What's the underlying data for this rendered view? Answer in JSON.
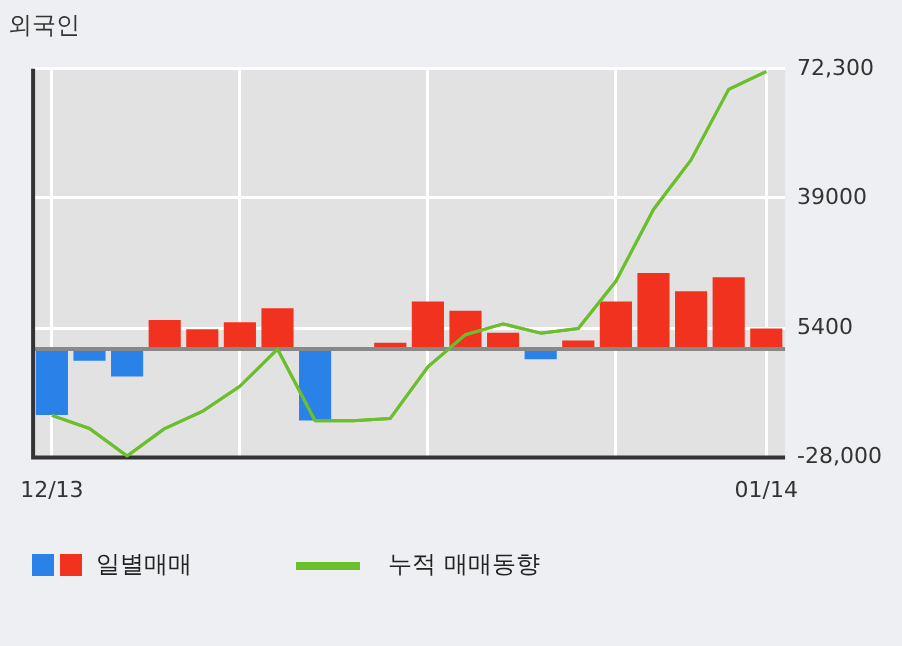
{
  "chart_data": {
    "type": "bar",
    "title": "외국인",
    "categories": [
      "12/13",
      null,
      null,
      null,
      null,
      null,
      null,
      null,
      null,
      null,
      null,
      null,
      null,
      null,
      null,
      null,
      null,
      null,
      null,
      "01/14"
    ],
    "series": [
      {
        "name": "일별매매",
        "colors": [
          "#2a82e8",
          "#2a82e8",
          "#2a82e8",
          "#f0321e",
          "#f0321e",
          "#f0321e",
          "#f0321e",
          "#2a82e8",
          "#f0321e",
          "#f0321e",
          "#f0321e",
          "#f0321e",
          "#f0321e",
          "#2a82e8",
          "#f0321e",
          "#f0321e",
          "#f0321e",
          "#f0321e",
          "#f0321e",
          "#f0321e"
        ],
        "values": [
          -17000,
          -3000,
          -7100,
          7500,
          5100,
          6900,
          10500,
          -18400,
          0,
          1600,
          12300,
          9900,
          4200,
          -2600,
          2200,
          12300,
          19600,
          14900,
          18500,
          5300
        ]
      },
      {
        "name": "누적 매매동향",
        "type": "line",
        "color": "#6cbf2c",
        "values": [
          -17100,
          -20500,
          -27600,
          -20500,
          -16100,
          -9600,
          0,
          -18500,
          -18500,
          -17900,
          -4600,
          3700,
          6500,
          4100,
          5300,
          17500,
          36000,
          48800,
          67000,
          71600
        ]
      }
    ],
    "ylim": [
      -28000,
      72300
    ],
    "yticks": [
      {
        "value": 72300,
        "label": "72,300"
      },
      39000,
      5400,
      {
        "value": -28000,
        "label": "-28,000"
      }
    ],
    "ref_lines": [
      {
        "axis": "y",
        "value": 0,
        "color": "#888888"
      }
    ],
    "grid": true,
    "legend": "bottom",
    "marker": "none",
    "line_style": "solid"
  }
}
